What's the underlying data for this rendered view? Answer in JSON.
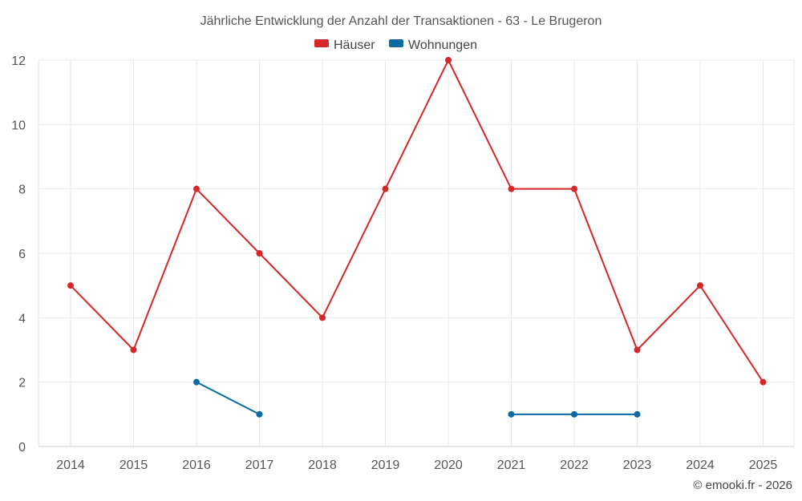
{
  "chart_data": {
    "type": "line",
    "title": "Jährliche Entwicklung der Anzahl der Transaktionen - 63 - Le Brugeron",
    "categories": [
      "2014",
      "2015",
      "2016",
      "2017",
      "2018",
      "2019",
      "2020",
      "2021",
      "2022",
      "2023",
      "2024",
      "2025"
    ],
    "ylim": [
      0,
      12
    ],
    "yticks": [
      0,
      2,
      4,
      6,
      8,
      10,
      12
    ],
    "grid": true,
    "legend_position": "top-center",
    "series": [
      {
        "name": "Häuser",
        "color": "#d62728",
        "values": [
          5,
          3,
          8,
          6,
          4,
          8,
          12,
          8,
          8,
          3,
          5,
          2
        ]
      },
      {
        "name": "Wohnungen",
        "color": "#0b6aa2",
        "values": [
          null,
          null,
          2,
          1,
          null,
          null,
          null,
          1,
          1,
          1,
          null,
          null
        ]
      }
    ],
    "credit": "© emooki.fr - 2026"
  }
}
